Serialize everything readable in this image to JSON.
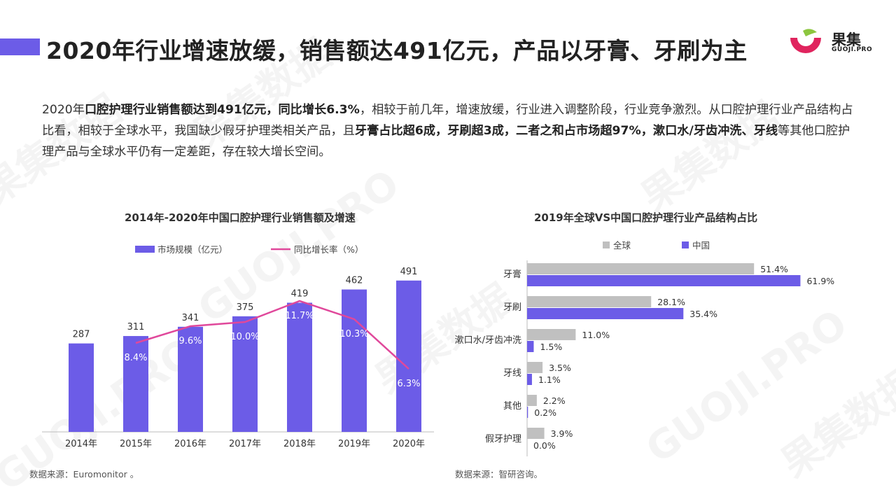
{
  "header": {
    "title": "2020年行业增速放缓，销售额达491亿元，产品以牙膏、牙刷为主",
    "logo_text": "果集",
    "logo_sub": "GUOJI.PRO"
  },
  "body": {
    "segments": [
      {
        "text": "2020年",
        "bold": false
      },
      {
        "text": "口腔护理行业销售额达到491亿元，同比增长6.3%",
        "bold": true
      },
      {
        "text": "，相较于前几年，增速放缓，行业进入调整阶段，行业竞争激烈。从口腔护理行业产品结构占比看，相较于全球水平，我国缺少假牙护理类相关产品，且",
        "bold": false
      },
      {
        "text": "牙膏占比超6成，牙刷超3成，二者之和占市场超97%，漱口水/牙齿冲洗、牙线",
        "bold": true
      },
      {
        "text": "等其他口腔护理产品与全球水平仍有一定差距，存在较大增长空间。",
        "bold": false
      }
    ]
  },
  "watermark": {
    "cn": "果集数据",
    "en": "GUOJI.PRO"
  },
  "colors": {
    "accent": "#6c5ce7",
    "line": "#e0489b",
    "gray": "#c0c0c0"
  },
  "chart_data": [
    {
      "type": "bar",
      "title": "2014年-2020年中国口腔护理行业销售额及增速",
      "categories": [
        "2014年",
        "2015年",
        "2016年",
        "2017年",
        "2018年",
        "2019年",
        "2020年"
      ],
      "series": [
        {
          "name": "市场规模（亿元）",
          "type": "bar",
          "values": [
            287,
            311,
            341,
            375,
            419,
            462,
            491
          ],
          "labels": [
            "287",
            "311",
            "341",
            "375",
            "419",
            "462",
            "491"
          ]
        },
        {
          "name": "同比增长率（%）",
          "type": "line",
          "values": [
            null,
            8.4,
            9.6,
            10.0,
            11.7,
            10.3,
            6.3
          ],
          "labels": [
            "",
            "8.4%",
            "9.6%",
            "10.0%",
            "11.7%",
            "10.3%",
            "6.3%"
          ]
        }
      ],
      "ylim": [
        0,
        500
      ],
      "y2lim": [
        0,
        15
      ],
      "legend": "top",
      "source": "数据来源：Euromonitor 。"
    },
    {
      "type": "bar",
      "orientation": "horizontal",
      "title": "2019年全球VS中国口腔护理行业产品结构占比",
      "categories": [
        "牙膏",
        "牙刷",
        "漱口水/牙齿冲洗",
        "牙线",
        "其他",
        "假牙护理"
      ],
      "series": [
        {
          "name": "全球",
          "values": [
            51.4,
            28.1,
            11.0,
            3.5,
            2.2,
            3.9
          ],
          "labels": [
            "51.4%",
            "28.1%",
            "11.0%",
            "3.5%",
            "2.2%",
            "3.9%"
          ]
        },
        {
          "name": "中国",
          "values": [
            61.9,
            35.4,
            1.5,
            1.1,
            0.2,
            0.0
          ],
          "labels": [
            "61.9%",
            "35.4%",
            "1.5%",
            "1.1%",
            "0.2%",
            "0.0%"
          ]
        }
      ],
      "xlim": [
        0,
        65
      ],
      "legend": "top",
      "source": "数据来源：智研咨询。"
    }
  ]
}
